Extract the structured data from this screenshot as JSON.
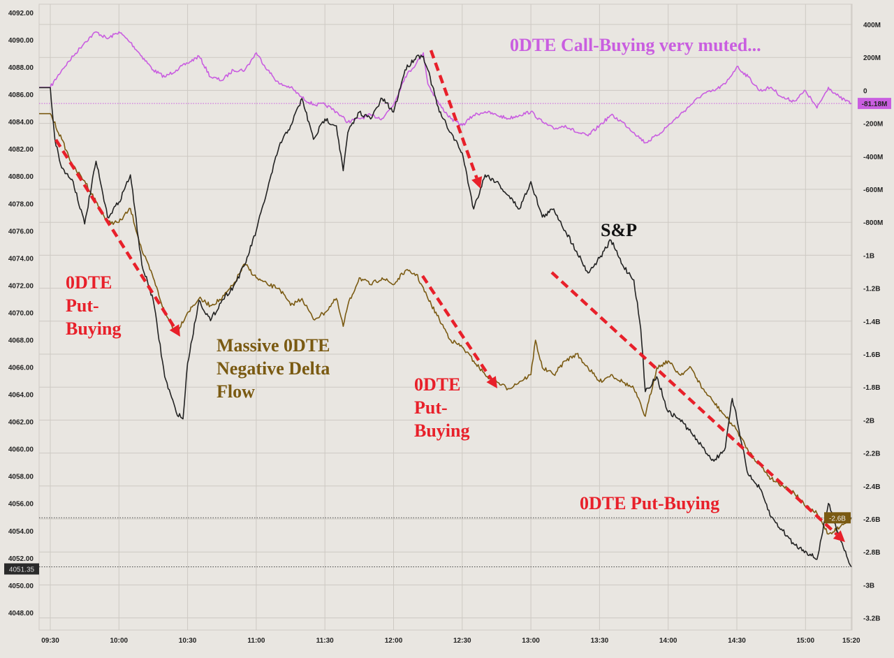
{
  "chart_data": {
    "type": "line",
    "title": "",
    "xlabel": "",
    "ylabel_left": "",
    "ylabel_right": "",
    "grid": true,
    "colors": {
      "background": "#e9e6e1",
      "sp": "#222222",
      "delta": "#7a5a12",
      "calls": "#c95ee0",
      "annotation": "#e8202a"
    },
    "x_ticks": [
      "09:30",
      "10:00",
      "10:30",
      "11:00",
      "11:30",
      "12:00",
      "12:30",
      "13:00",
      "13:30",
      "14:00",
      "14:30",
      "15:00",
      "15:20"
    ],
    "left_axis": {
      "range": [
        4046.5,
        4093
      ],
      "ticks": [
        "4092.00",
        "4090.00",
        "4088.00",
        "4086.00",
        "4084.00",
        "4082.00",
        "4080.00",
        "4078.00",
        "4076.00",
        "4074.00",
        "4072.00",
        "4070.00",
        "4068.00",
        "4066.00",
        "4064.00",
        "4062.00",
        "4060.00",
        "4058.00",
        "4056.00",
        "4054.00",
        "4052.00",
        "4050.00",
        "4048.00"
      ]
    },
    "right_axis": {
      "unit": "USD",
      "range_millions": [
        -3300,
        450
      ],
      "ticks": [
        "400M",
        "200M",
        "0",
        "-200M",
        "-400M",
        "-600M",
        "-800M",
        "-1B",
        "-1.2B",
        "-1.4B",
        "-1.6B",
        "-1.8B",
        "-2B",
        "-2.2B",
        "-2.4B",
        "-2.6B",
        "-2.8B",
        "-3B",
        "-3.2B"
      ]
    },
    "series": [
      {
        "name": "S&P",
        "axis": "left",
        "last_label": "4051.35",
        "points": [
          [
            "09:30",
            4086.5
          ],
          [
            "09:32",
            4082.7
          ],
          [
            "09:35",
            4080.6
          ],
          [
            "09:40",
            4079.6
          ],
          [
            "09:45",
            4076.5
          ],
          [
            "09:50",
            4081.1
          ],
          [
            "09:55",
            4077.0
          ],
          [
            "10:00",
            4078.1
          ],
          [
            "10:05",
            4080.1
          ],
          [
            "10:10",
            4073.5
          ],
          [
            "10:15",
            4070.9
          ],
          [
            "10:20",
            4065.3
          ],
          [
            "10:25",
            4062.7
          ],
          [
            "10:28",
            4062.2
          ],
          [
            "10:30",
            4066.3
          ],
          [
            "10:35",
            4070.9
          ],
          [
            "10:40",
            4069.4
          ],
          [
            "10:45",
            4070.9
          ],
          [
            "10:50",
            4071.9
          ],
          [
            "10:55",
            4073.5
          ],
          [
            "11:00",
            4076.0
          ],
          [
            "11:05",
            4079.1
          ],
          [
            "11:10",
            4082.2
          ],
          [
            "11:15",
            4083.7
          ],
          [
            "11:20",
            4085.7
          ],
          [
            "11:25",
            4082.7
          ],
          [
            "11:30",
            4084.2
          ],
          [
            "11:35",
            4083.7
          ],
          [
            "11:38",
            4080.4
          ],
          [
            "11:40",
            4083.2
          ],
          [
            "11:45",
            4084.7
          ],
          [
            "11:50",
            4084.2
          ],
          [
            "11:55",
            4085.7
          ],
          [
            "12:00",
            4084.7
          ],
          [
            "12:05",
            4087.8
          ],
          [
            "12:10",
            4088.8
          ],
          [
            "12:13",
            4088.8
          ],
          [
            "12:15",
            4087.8
          ],
          [
            "12:20",
            4084.7
          ],
          [
            "12:25",
            4083.2
          ],
          [
            "12:30",
            4081.7
          ],
          [
            "12:35",
            4077.6
          ],
          [
            "12:40",
            4080.1
          ],
          [
            "12:45",
            4079.6
          ],
          [
            "12:50",
            4078.6
          ],
          [
            "12:55",
            4077.6
          ],
          [
            "13:00",
            4079.6
          ],
          [
            "13:05",
            4077.0
          ],
          [
            "13:10",
            4077.6
          ],
          [
            "13:15",
            4076.0
          ],
          [
            "13:20",
            4074.5
          ],
          [
            "13:25",
            4072.9
          ],
          [
            "13:30",
            4074.0
          ],
          [
            "13:35",
            4075.3
          ],
          [
            "13:40",
            4073.5
          ],
          [
            "13:45",
            4072.4
          ],
          [
            "13:48",
            4068.8
          ],
          [
            "13:50",
            4064.2
          ],
          [
            "13:55",
            4065.3
          ],
          [
            "14:00",
            4062.7
          ],
          [
            "14:05",
            4062.2
          ],
          [
            "14:10",
            4061.2
          ],
          [
            "14:15",
            4060.1
          ],
          [
            "14:20",
            4059.1
          ],
          [
            "14:25",
            4060.1
          ],
          [
            "14:28",
            4063.7
          ],
          [
            "14:30",
            4062.2
          ],
          [
            "14:35",
            4058.1
          ],
          [
            "14:40",
            4057.1
          ],
          [
            "14:45",
            4055.0
          ],
          [
            "14:50",
            4054.0
          ],
          [
            "14:55",
            4053.0
          ],
          [
            "15:00",
            4052.5
          ],
          [
            "15:05",
            4051.9
          ],
          [
            "15:10",
            4056.0
          ],
          [
            "15:15",
            4053.5
          ],
          [
            "15:20",
            4051.35
          ]
        ]
      },
      {
        "name": "",
        "axis": "right",
        "last_label": "-2.6B",
        "points": [
          [
            "09:30",
            -143
          ],
          [
            "09:35",
            -299
          ],
          [
            "09:40",
            -467
          ],
          [
            "09:45",
            -552
          ],
          [
            "09:50",
            -678
          ],
          [
            "09:55",
            -804
          ],
          [
            "10:00",
            -804
          ],
          [
            "10:05",
            -720
          ],
          [
            "10:10",
            -973
          ],
          [
            "10:15",
            -1141
          ],
          [
            "10:20",
            -1352
          ],
          [
            "10:25",
            -1478
          ],
          [
            "10:30",
            -1352
          ],
          [
            "10:35",
            -1267
          ],
          [
            "10:40",
            -1309
          ],
          [
            "10:45",
            -1267
          ],
          [
            "10:50",
            -1183
          ],
          [
            "10:55",
            -1057
          ],
          [
            "11:00",
            -1141
          ],
          [
            "11:05",
            -1183
          ],
          [
            "11:10",
            -1204
          ],
          [
            "11:15",
            -1309
          ],
          [
            "11:20",
            -1267
          ],
          [
            "11:25",
            -1394
          ],
          [
            "11:30",
            -1352
          ],
          [
            "11:35",
            -1267
          ],
          [
            "11:38",
            -1436
          ],
          [
            "11:40",
            -1309
          ],
          [
            "11:45",
            -1141
          ],
          [
            "11:50",
            -1183
          ],
          [
            "11:55",
            -1141
          ],
          [
            "12:00",
            -1183
          ],
          [
            "12:05",
            -1099
          ],
          [
            "12:10",
            -1120
          ],
          [
            "12:15",
            -1267
          ],
          [
            "12:20",
            -1394
          ],
          [
            "12:25",
            -1520
          ],
          [
            "12:30",
            -1562
          ],
          [
            "12:35",
            -1646
          ],
          [
            "12:40",
            -1730
          ],
          [
            "12:45",
            -1773
          ],
          [
            "12:50",
            -1815
          ],
          [
            "12:55",
            -1773
          ],
          [
            "13:00",
            -1730
          ],
          [
            "13:02",
            -1520
          ],
          [
            "13:05",
            -1688
          ],
          [
            "13:10",
            -1730
          ],
          [
            "13:15",
            -1646
          ],
          [
            "13:20",
            -1604
          ],
          [
            "13:25",
            -1688
          ],
          [
            "13:30",
            -1773
          ],
          [
            "13:35",
            -1730
          ],
          [
            "13:40",
            -1773
          ],
          [
            "13:45",
            -1815
          ],
          [
            "13:50",
            -1983
          ],
          [
            "13:55",
            -1688
          ],
          [
            "14:00",
            -1646
          ],
          [
            "14:05",
            -1730
          ],
          [
            "14:10",
            -1688
          ],
          [
            "14:15",
            -1815
          ],
          [
            "14:20",
            -1899
          ],
          [
            "14:25",
            -1983
          ],
          [
            "14:30",
            -2067
          ],
          [
            "14:35",
            -2194
          ],
          [
            "14:40",
            -2278
          ],
          [
            "14:45",
            -2362
          ],
          [
            "14:50",
            -2404
          ],
          [
            "14:55",
            -2446
          ],
          [
            "15:00",
            -2531
          ],
          [
            "15:05",
            -2573
          ],
          [
            "15:10",
            -2699
          ],
          [
            "15:15",
            -2657
          ],
          [
            "15:20",
            -2600
          ]
        ]
      },
      {
        "name": "",
        "axis": "right",
        "last_label": "-81.18M",
        "points": [
          [
            "09:30",
            17
          ],
          [
            "09:35",
            122
          ],
          [
            "09:40",
            206
          ],
          [
            "09:45",
            290
          ],
          [
            "09:50",
            354
          ],
          [
            "09:55",
            312
          ],
          [
            "10:00",
            354
          ],
          [
            "10:05",
            290
          ],
          [
            "10:10",
            206
          ],
          [
            "10:15",
            122
          ],
          [
            "10:20",
            80
          ],
          [
            "10:25",
            122
          ],
          [
            "10:30",
            164
          ],
          [
            "10:35",
            206
          ],
          [
            "10:40",
            80
          ],
          [
            "10:45",
            59
          ],
          [
            "10:50",
            122
          ],
          [
            "10:55",
            122
          ],
          [
            "11:00",
            227
          ],
          [
            "11:05",
            122
          ],
          [
            "11:10",
            38
          ],
          [
            "11:15",
            17
          ],
          [
            "11:20",
            -46
          ],
          [
            "11:25",
            -88
          ],
          [
            "11:30",
            -88
          ],
          [
            "11:35",
            -131
          ],
          [
            "11:40",
            -194
          ],
          [
            "11:45",
            -173
          ],
          [
            "11:50",
            -152
          ],
          [
            "11:55",
            -173
          ],
          [
            "12:00",
            -88
          ],
          [
            "12:05",
            80
          ],
          [
            "12:10",
            164
          ],
          [
            "12:13",
            227
          ],
          [
            "12:15",
            38
          ],
          [
            "12:20",
            -88
          ],
          [
            "12:25",
            -173
          ],
          [
            "12:30",
            -215
          ],
          [
            "12:35",
            -152
          ],
          [
            "12:40",
            -131
          ],
          [
            "12:45",
            -152
          ],
          [
            "12:50",
            -173
          ],
          [
            "12:55",
            -152
          ],
          [
            "13:00",
            -131
          ],
          [
            "13:05",
            -194
          ],
          [
            "13:10",
            -236
          ],
          [
            "13:15",
            -215
          ],
          [
            "13:20",
            -257
          ],
          [
            "13:25",
            -278
          ],
          [
            "13:30",
            -215
          ],
          [
            "13:35",
            -152
          ],
          [
            "13:40",
            -194
          ],
          [
            "13:45",
            -257
          ],
          [
            "13:50",
            -320
          ],
          [
            "13:55",
            -278
          ],
          [
            "14:00",
            -215
          ],
          [
            "14:05",
            -152
          ],
          [
            "14:10",
            -88
          ],
          [
            "14:15",
            -25
          ],
          [
            "14:20",
            -4
          ],
          [
            "14:25",
            38
          ],
          [
            "14:30",
            143
          ],
          [
            "14:35",
            80
          ],
          [
            "14:40",
            -4
          ],
          [
            "14:45",
            17
          ],
          [
            "14:50",
            -46
          ],
          [
            "14:55",
            -67
          ],
          [
            "15:00",
            -4
          ],
          [
            "15:05",
            -109
          ],
          [
            "15:10",
            17
          ],
          [
            "15:15",
            -46
          ],
          [
            "15:20",
            -81.18
          ]
        ]
      }
    ],
    "annotations": [
      {
        "text_lines": [
          "0DTE",
          "Put-",
          "Buying"
        ],
        "color": "#e8202a"
      },
      {
        "text_lines": [
          "Massive 0DTE",
          "Negative Delta",
          "Flow"
        ],
        "color": "#7a5a12"
      },
      {
        "text_lines": [
          "0DTE",
          "Put-",
          "Buying"
        ],
        "color": "#e8202a"
      },
      {
        "text_lines": [
          "S&P"
        ],
        "color": "#111111"
      },
      {
        "text_lines": [
          "0DTE Call-Buying very muted..."
        ],
        "color": "#c95ee0"
      },
      {
        "text_lines": [
          "0DTE Put-Buying"
        ],
        "color": "#e8202a"
      }
    ]
  }
}
